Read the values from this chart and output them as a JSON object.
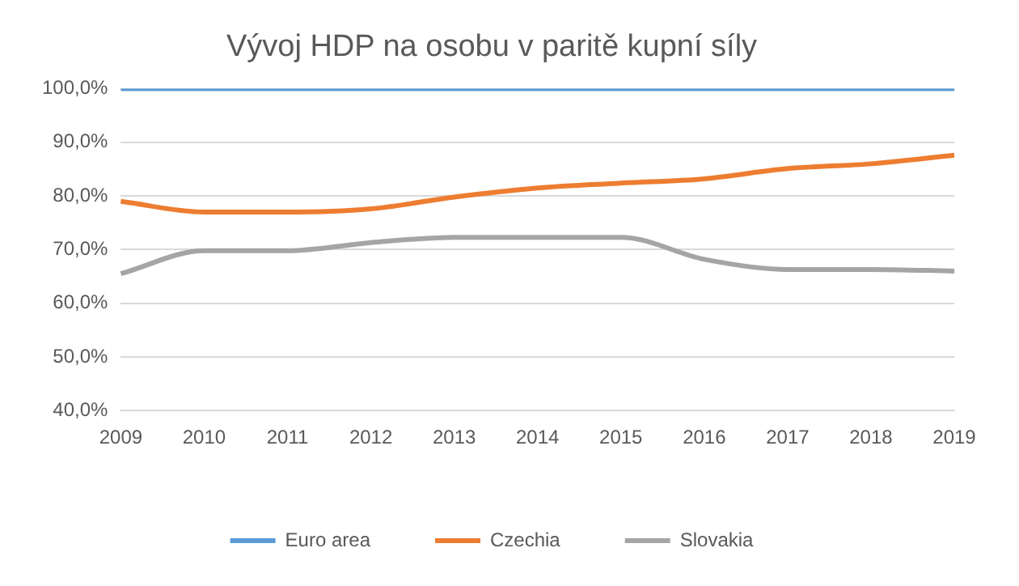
{
  "chart_data": {
    "type": "line",
    "title": "Vývoj HDP na osobu v paritě kupní síly",
    "categories": [
      "2009",
      "2010",
      "2011",
      "2012",
      "2013",
      "2014",
      "2015",
      "2016",
      "2017",
      "2018",
      "2019"
    ],
    "series": [
      {
        "name": "Euro area",
        "color": "#5b9bd5",
        "values": [
          100,
          100,
          100,
          100,
          100,
          100,
          100,
          100,
          100,
          100,
          100
        ]
      },
      {
        "name": "Czechia",
        "color": "#ed7d31",
        "values": [
          79,
          77,
          77,
          77.6,
          79.8,
          81.5,
          82.4,
          83.2,
          85.1,
          86,
          87.6
        ]
      },
      {
        "name": "Slovakia",
        "color": "#a5a5a5",
        "values": [
          65.5,
          69.8,
          69.8,
          71.3,
          72.3,
          72.3,
          72.3,
          68.2,
          66.3,
          66.3,
          66
        ]
      }
    ],
    "ylim": [
      40,
      100
    ],
    "yticks": [
      {
        "value": 40,
        "label": "40,0%"
      },
      {
        "value": 50,
        "label": "50,0%"
      },
      {
        "value": 60,
        "label": "60,0%"
      },
      {
        "value": 70,
        "label": "70,0%"
      },
      {
        "value": 80,
        "label": "80,0%"
      },
      {
        "value": 90,
        "label": "90,0%"
      },
      {
        "value": 100,
        "label": "100,0%"
      }
    ],
    "grid": "y",
    "legend": "bottom",
    "marker": "none",
    "line_style": "solid"
  }
}
